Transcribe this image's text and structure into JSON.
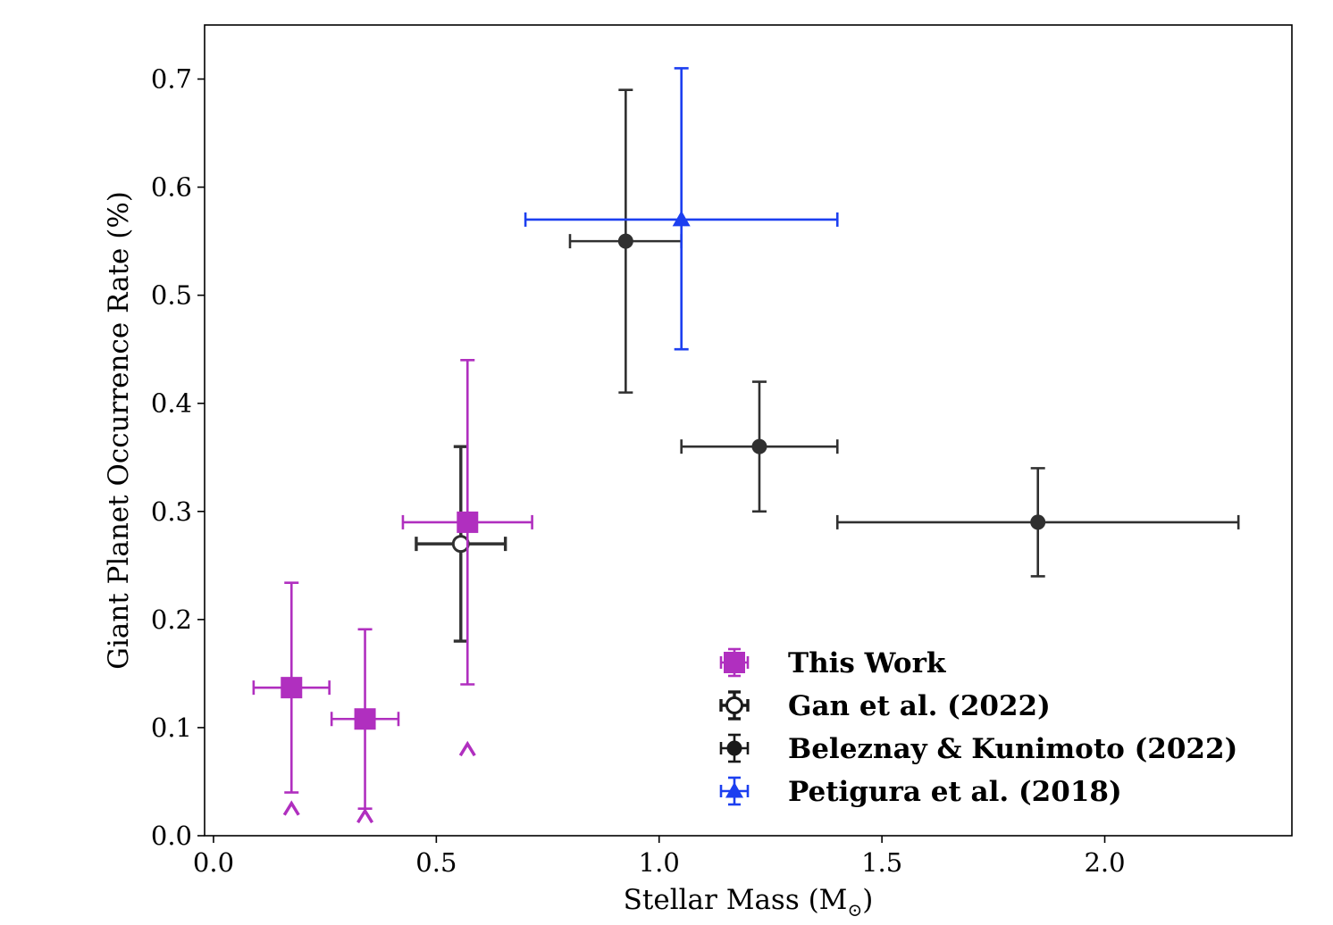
{
  "chart_data": {
    "type": "scatter",
    "xlabel": "Stellar Mass (M",
    "xlabel_sub": "⊙",
    "xlabel_close": ")",
    "ylabel": "Giant Planet Occurrence Rate (%)",
    "xlim": [
      -0.02,
      2.42
    ],
    "ylim": [
      0.0,
      0.75
    ],
    "xticks": [
      0.0,
      0.5,
      1.0,
      1.5,
      2.0
    ],
    "xtick_labels": [
      "0.0",
      "0.5",
      "1.0",
      "1.5",
      "2.0"
    ],
    "yticks": [
      0.0,
      0.1,
      0.2,
      0.3,
      0.4,
      0.5,
      0.6,
      0.7
    ],
    "ytick_labels": [
      "0.0",
      "0.1",
      "0.2",
      "0.3",
      "0.4",
      "0.5",
      "0.6",
      "0.7"
    ],
    "grid": false,
    "legend_position": "lower-right",
    "series": [
      {
        "name": "This Work",
        "color": "#b02fbf",
        "marker": "square",
        "points": [
          {
            "x": 0.175,
            "y": 0.137,
            "xerr": [
              0.085,
              0.085
            ],
            "yerr": [
              0.097,
              0.097
            ]
          },
          {
            "x": 0.34,
            "y": 0.108,
            "xerr": [
              0.075,
              0.075
            ],
            "yerr": [
              0.083,
              0.083
            ]
          },
          {
            "x": 0.57,
            "y": 0.29,
            "xerr": [
              0.145,
              0.145
            ],
            "yerr": [
              0.15,
              0.15
            ]
          }
        ],
        "lower_limits": [
          {
            "x": 0.175,
            "y": 0.025
          },
          {
            "x": 0.34,
            "y": 0.018
          },
          {
            "x": 0.57,
            "y": 0.08
          }
        ]
      },
      {
        "name": "Gan et al. (2022)",
        "color": "#1a1a1a",
        "marker": "open-circle",
        "points": [
          {
            "x": 0.555,
            "y": 0.27,
            "xerr": [
              0.1,
              0.1
            ],
            "yerr": [
              0.09,
              0.09
            ]
          }
        ]
      },
      {
        "name": "Beleznay & Kunimoto (2022)",
        "color": "#1a1a1a",
        "marker": "filled-circle",
        "points": [
          {
            "x": 0.925,
            "y": 0.55,
            "xerr": [
              0.125,
              0.125
            ],
            "yerr": [
              0.14,
              0.14
            ]
          },
          {
            "x": 1.225,
            "y": 0.36,
            "xerr": [
              0.175,
              0.175
            ],
            "yerr": [
              0.06,
              0.06
            ]
          },
          {
            "x": 1.85,
            "y": 0.29,
            "xerr": [
              0.45,
              0.45
            ],
            "yerr": [
              0.05,
              0.05
            ]
          }
        ]
      },
      {
        "name": "Petigura et al. (2018)",
        "color": "#1c3ff0",
        "marker": "triangle",
        "points": [
          {
            "x": 1.05,
            "y": 0.57,
            "xerr": [
              0.35,
              0.35
            ],
            "yerr": [
              0.12,
              0.14
            ]
          }
        ]
      }
    ]
  }
}
